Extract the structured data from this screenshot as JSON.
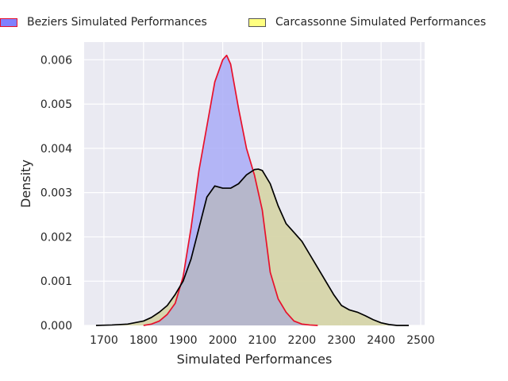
{
  "chart_data": {
    "type": "area",
    "title": "",
    "xlabel": "Simulated Performances",
    "ylabel": "Density",
    "xlim": [
      1650,
      2510
    ],
    "ylim": [
      0,
      0.0064
    ],
    "x_ticks": [
      "1700",
      "1800",
      "1900",
      "2000",
      "2100",
      "2200",
      "2300",
      "2400",
      "2500"
    ],
    "y_ticks": [
      "0.000",
      "0.001",
      "0.002",
      "0.003",
      "0.004",
      "0.005",
      "0.006"
    ],
    "grid": true,
    "legend_position": "top-center, above plot",
    "series": [
      {
        "name": "Beziers Simulated Performances",
        "fill_color": "#a9abf7",
        "line_color": "#e8102a",
        "swatch_color": "#8080ff",
        "swatch_border": "#e8102a",
        "x": [
          1800,
          1820,
          1840,
          1860,
          1880,
          1900,
          1920,
          1940,
          1960,
          1980,
          2000,
          2010,
          2020,
          2040,
          2060,
          2080,
          2100,
          2120,
          2140,
          2160,
          2180,
          2200,
          2220,
          2240
        ],
        "y": [
          0.0,
          3e-05,
          0.0001,
          0.00025,
          0.0005,
          0.0011,
          0.0022,
          0.0035,
          0.0045,
          0.0055,
          0.006,
          0.0061,
          0.0059,
          0.0049,
          0.004,
          0.0034,
          0.0026,
          0.0012,
          0.0006,
          0.0003,
          0.0001,
          3e-05,
          1e-05,
          0.0
        ]
      },
      {
        "name": "Carcassonne Simulated Performances",
        "fill_color": "#f1f0b1",
        "line_color": "#000000",
        "swatch_color": "#ffff80",
        "swatch_border": "#555555",
        "x": [
          1680,
          1720,
          1760,
          1800,
          1820,
          1840,
          1860,
          1880,
          1900,
          1920,
          1940,
          1960,
          1980,
          2000,
          2020,
          2040,
          2060,
          2080,
          2090,
          2100,
          2120,
          2140,
          2160,
          2180,
          2200,
          2220,
          2240,
          2260,
          2280,
          2300,
          2320,
          2340,
          2360,
          2380,
          2400,
          2420,
          2440,
          2470
        ],
        "y": [
          0.0,
          1e-05,
          3e-05,
          0.0001,
          0.00018,
          0.0003,
          0.00045,
          0.0007,
          0.001,
          0.0015,
          0.0022,
          0.0029,
          0.00315,
          0.0031,
          0.0031,
          0.0032,
          0.0034,
          0.00352,
          0.00353,
          0.0035,
          0.0032,
          0.0027,
          0.0023,
          0.0021,
          0.0019,
          0.0016,
          0.0013,
          0.001,
          0.0007,
          0.00045,
          0.00035,
          0.0003,
          0.00022,
          0.00013,
          6e-05,
          2e-05,
          0.0,
          0.0
        ]
      }
    ]
  }
}
